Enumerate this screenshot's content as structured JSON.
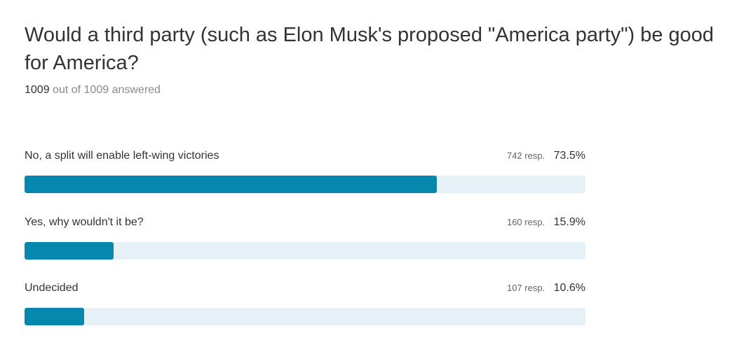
{
  "survey": {
    "question": "Would a third party (such as Elon Musk's proposed \"America party\") be good for America?",
    "answered_count": "1009",
    "answered_suffix": "out of 1009 answered",
    "results": [
      {
        "label": "No, a split will enable left-wing victories",
        "responses": "742 resp.",
        "percent_text": "73.5%",
        "percent": 73.5
      },
      {
        "label": "Yes, why wouldn't it be?",
        "responses": "160 resp.",
        "percent_text": "15.9%",
        "percent": 15.9
      },
      {
        "label": "Undecided",
        "responses": "107 resp.",
        "percent_text": "10.6%",
        "percent": 10.6
      }
    ]
  },
  "colors": {
    "bar_fill": "#0587ae",
    "bar_track": "#e5f1f6",
    "text_primary": "#333333",
    "text_muted": "#8a8a8a"
  }
}
